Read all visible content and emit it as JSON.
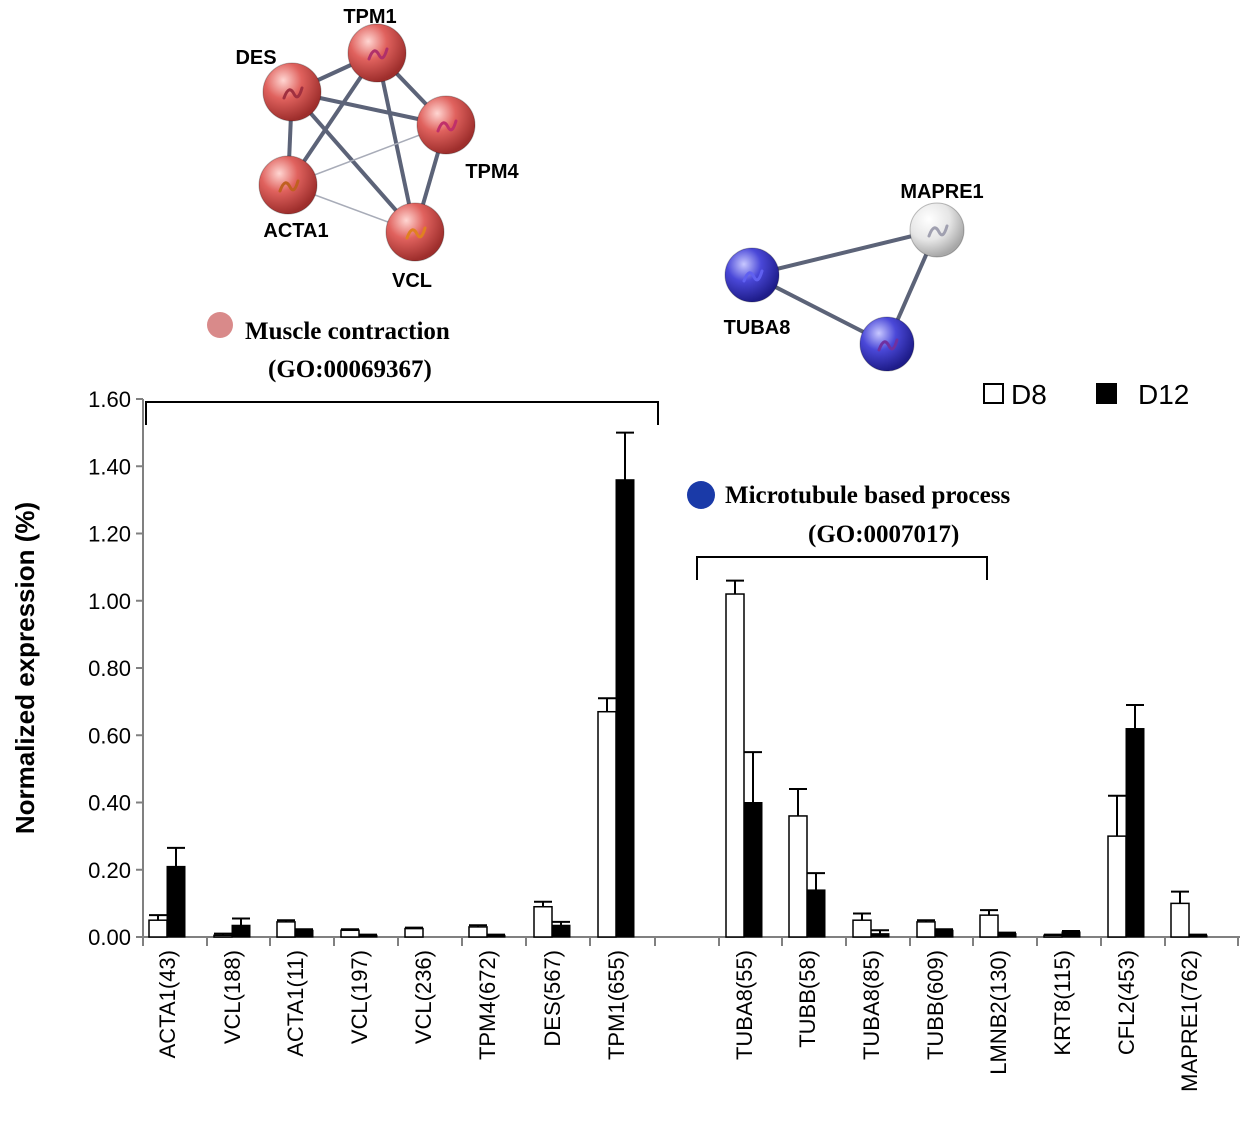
{
  "chart_data": {
    "type": "bar",
    "ylabel": "Normalized expression (%)",
    "ylim": [
      0,
      1.6
    ],
    "yticks": [
      "0.00",
      "0.20",
      "0.40",
      "0.60",
      "0.80",
      "1.00",
      "1.20",
      "1.40",
      "1.60"
    ],
    "grid": false,
    "legend_position": "top-right",
    "categories": [
      "ACTA1(43)",
      "VCL(188)",
      "ACTA1(11)",
      "VCL(197)",
      "VCL(236)",
      "TPM4(672)",
      "DES(567)",
      "TPM1(655)",
      "TUBA8(55)",
      "TUBB(58)",
      "TUBA8(85)",
      "TUBB(609)",
      "LMNB2(130)",
      "KRT8(115)",
      "CFL2(453)",
      "MAPRE1(762)"
    ],
    "series": [
      {
        "name": "D8",
        "color": "#ffffff",
        "values": [
          0.05,
          0.005,
          0.045,
          0.02,
          0.025,
          0.03,
          0.09,
          0.67,
          1.02,
          0.36,
          0.05,
          0.045,
          0.065,
          0.005,
          0.3,
          0.1
        ],
        "errors": [
          0.015,
          0.005,
          0.005,
          0.003,
          0.003,
          0.005,
          0.015,
          0.04,
          0.04,
          0.08,
          0.02,
          0.005,
          0.015,
          0.002,
          0.12,
          0.035
        ]
      },
      {
        "name": "D12",
        "color": "#000000",
        "values": [
          0.21,
          0.035,
          0.02,
          0.005,
          0.0,
          0.005,
          0.035,
          1.36,
          0.4,
          0.14,
          0.01,
          0.02,
          0.01,
          0.015,
          0.62,
          0.005
        ],
        "errors": [
          0.055,
          0.02,
          0.003,
          0.002,
          0.0,
          0.002,
          0.01,
          0.14,
          0.15,
          0.05,
          0.01,
          0.003,
          0.003,
          0.003,
          0.07,
          0.002
        ]
      }
    ],
    "annotations": {
      "group1": {
        "title": "Muscle contraction",
        "go_id": "(GO:00069367)",
        "color": "#d98a8a"
      },
      "group2": {
        "title": "Microtubule based process",
        "go_id": "(GO:0007017)",
        "color": "#1a3aa8"
      }
    },
    "networks": {
      "muscle": {
        "node_color": "#e0625e",
        "nodes": [
          {
            "id": "TPM1",
            "label": "TPM1",
            "embed": "#b0306a"
          },
          {
            "id": "DES",
            "label": "DES",
            "embed": "#a03040"
          },
          {
            "id": "TPM4",
            "label": "TPM4",
            "embed": "#c0306a"
          },
          {
            "id": "ACTA1",
            "label": "ACTA1",
            "embed": "#c06020"
          },
          {
            "id": "VCL",
            "label": "VCL",
            "embed": "#e08020"
          }
        ],
        "edges": [
          [
            "TPM1",
            "DES"
          ],
          [
            "TPM1",
            "TPM4"
          ],
          [
            "TPM1",
            "ACTA1"
          ],
          [
            "TPM1",
            "VCL"
          ],
          [
            "DES",
            "TPM4"
          ],
          [
            "DES",
            "ACTA1"
          ],
          [
            "DES",
            "VCL"
          ],
          [
            "TPM4",
            "VCL"
          ],
          [
            "TPM4",
            "ACTA1"
          ],
          [
            "ACTA1",
            "VCL"
          ]
        ],
        "weak_edges": [
          [
            "TPM4",
            "ACTA1"
          ],
          [
            "ACTA1",
            "VCL"
          ]
        ]
      },
      "microtubule": {
        "nodes": [
          {
            "id": "MAPRE1",
            "label": "MAPRE1",
            "color": "#e8e8e8",
            "embed": "#a0a0b0"
          },
          {
            "id": "TUBA8",
            "label": "TUBA8",
            "color": "#4040d0",
            "embed": "#6060f0"
          },
          {
            "id": "TUBB",
            "label": "",
            "color": "#4040d0",
            "embed": "#7030a0"
          }
        ],
        "edges": [
          [
            "MAPRE1",
            "TUBA8"
          ],
          [
            "MAPRE1",
            "TUBB"
          ],
          [
            "TUBA8",
            "TUBB"
          ]
        ]
      }
    }
  }
}
